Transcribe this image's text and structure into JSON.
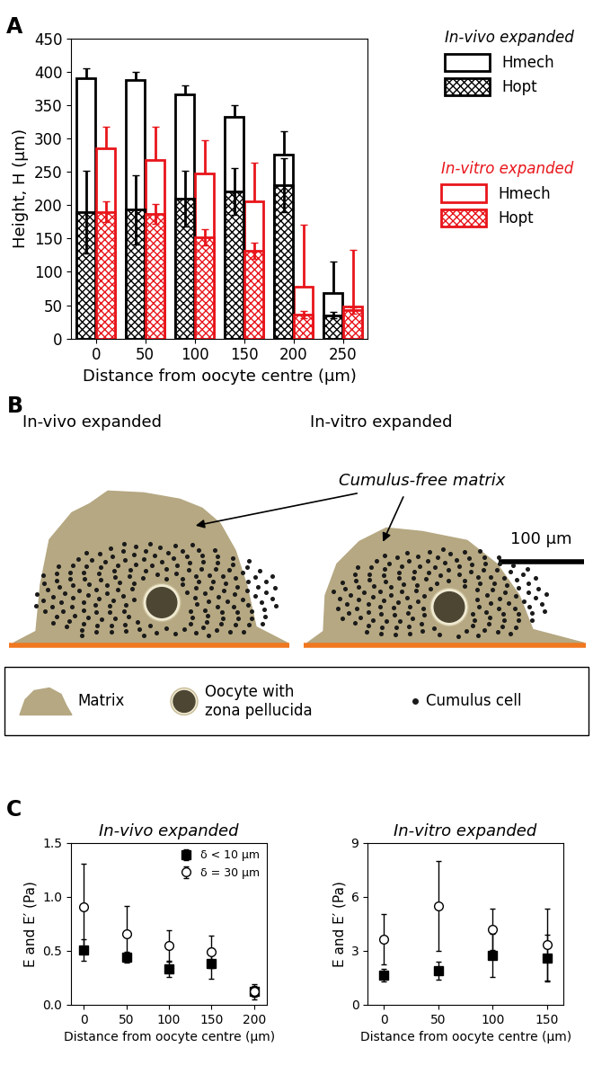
{
  "chart_data": [
    {
      "type": "bar",
      "panel_label": "A",
      "x_label": "Distance from oocyte centre (µm)",
      "y_label": "Height, H (µm)",
      "categories": [
        "0",
        "50",
        "100",
        "150",
        "200",
        "250"
      ],
      "ylim": [
        0,
        450
      ],
      "yticks": [
        0,
        50,
        100,
        150,
        200,
        250,
        300,
        350,
        400,
        450
      ],
      "legend": "upper right",
      "series": [
        {
          "name": "Hmech",
          "group": "In-vivo expanded",
          "color": "#000000",
          "values": [
            390,
            388,
            366,
            332,
            275,
            68
          ],
          "errors": [
            15,
            12,
            14,
            18,
            35,
            48
          ]
        },
        {
          "name": "Hopt",
          "group": "In-vivo expanded",
          "color": "#000000",
          "values": [
            190,
            193,
            210,
            220,
            230,
            35
          ],
          "errors": [
            62,
            52,
            42,
            35,
            40,
            5
          ]
        },
        {
          "name": "Hmech",
          "group": "In-vitro expanded",
          "color": "#e8151b",
          "values": [
            285,
            267,
            247,
            205,
            78,
            48
          ],
          "errors": [
            32,
            50,
            50,
            58,
            93,
            85
          ]
        },
        {
          "name": "Hopt",
          "group": "In-vitro expanded",
          "color": "#e8151b",
          "values": [
            190,
            187,
            152,
            132,
            36,
            42
          ],
          "errors": [
            15,
            15,
            12,
            12,
            5,
            5
          ]
        }
      ]
    },
    {
      "type": "scatter",
      "panel_label": "C",
      "title": "In-vivo expanded",
      "x_label": "Distance from oocyte centre (µm)",
      "y_label": "E and E′ (Pa)",
      "x": [
        0,
        50,
        100,
        150,
        200
      ],
      "xlim": [
        -15,
        215
      ],
      "xticks": [
        0,
        50,
        100,
        150,
        200
      ],
      "ylim": [
        0,
        1.5
      ],
      "yticks": [
        {
          "value": 0,
          "label": "0.0"
        },
        0.5,
        {
          "value": 1,
          "label": "1.0"
        },
        1.5
      ],
      "legend": "upper right",
      "series": [
        {
          "name": "δ < 10 µm",
          "color": "#000000",
          "marker": "square",
          "values": [
            0.51,
            0.44,
            0.33,
            0.38,
            0.12
          ],
          "errors": [
            0.1,
            0.05,
            0.07,
            0.14,
            0.05
          ]
        },
        {
          "name": "δ = 30 µm",
          "color": "#000000",
          "marker": "circle",
          "values": [
            0.91,
            0.66,
            0.55,
            0.49,
            0.12
          ],
          "errors": [
            0.4,
            0.26,
            0.14,
            0.15,
            0.07
          ]
        }
      ]
    },
    {
      "type": "scatter",
      "title": "In-vitro expanded",
      "x_label": "Distance from oocyte centre (µm)",
      "y_label": "E and E′ (Pa)",
      "x": [
        0,
        50,
        100,
        150
      ],
      "xlim": [
        -15,
        165
      ],
      "xticks": [
        0,
        50,
        100,
        150
      ],
      "ylim": [
        0,
        9
      ],
      "yticks": [
        0,
        3,
        6,
        9
      ],
      "series": [
        {
          "color": "#000000",
          "marker": "square",
          "values": [
            1.65,
            1.9,
            2.75,
            2.6
          ],
          "errors": [
            0.35,
            0.5,
            1.2,
            1.3
          ]
        },
        {
          "color": "#000000",
          "marker": "circle",
          "values": [
            3.65,
            5.5,
            4.2,
            3.35
          ],
          "errors": [
            1.4,
            2.5,
            1.15,
            2.0
          ]
        }
      ]
    }
  ],
  "diagram": {
    "panel_label": "B",
    "panels": [
      {
        "title": "In-vivo expanded"
      },
      {
        "title": "In-vitro expanded"
      }
    ],
    "annotation": "Cumulus-free matrix",
    "scale_bar": "100 µm",
    "key_items": [
      "Matrix",
      "Oocyte with zona pellucida",
      "Cumulus cell"
    ]
  }
}
